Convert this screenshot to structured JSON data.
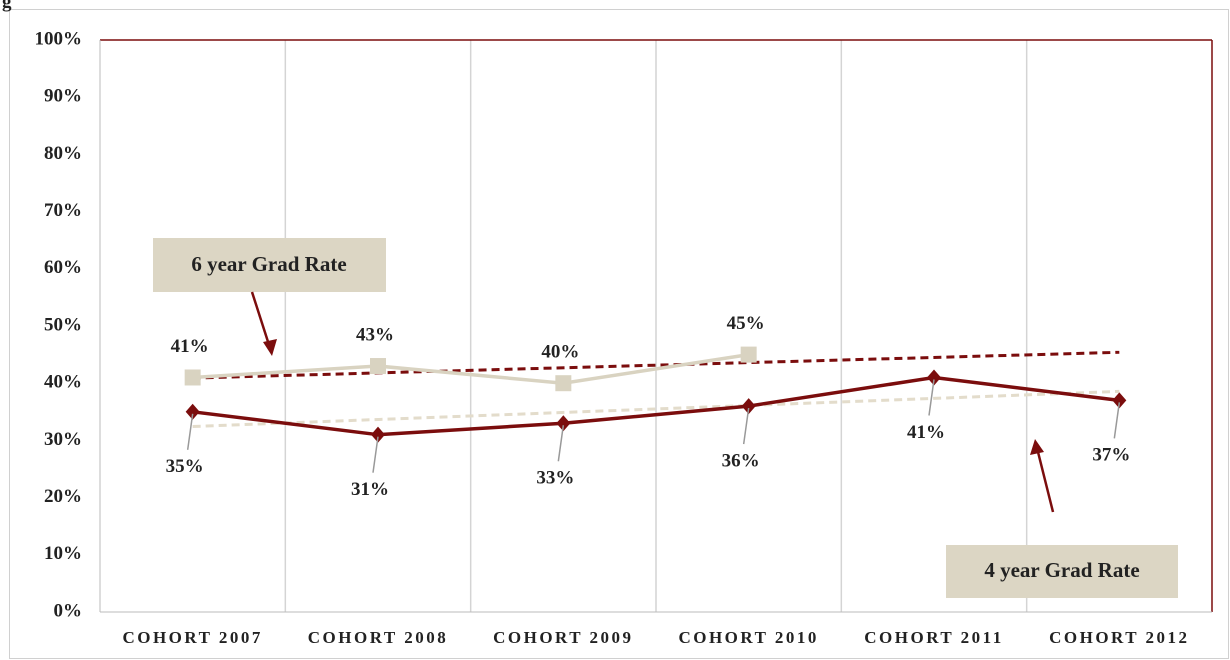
{
  "chart_data": {
    "type": "line",
    "title": "g",
    "categories": [
      "COHORT 2007",
      "COHORT 2008",
      "COHORT 2009",
      "COHORT 2010",
      "COHORT 2011",
      "COHORT 2012"
    ],
    "series": [
      {
        "name": "6 year Grad Rate",
        "color": "#d9d3c1",
        "marker": "square",
        "label_position": "above",
        "trendline": true,
        "trend_color": "#7b0d0d",
        "values": [
          41,
          43,
          40,
          45,
          null,
          null
        ],
        "value_labels": [
          "41%",
          "43%",
          "40%",
          "45%",
          null,
          null
        ]
      },
      {
        "name": "4 year Grad Rate",
        "color": "#7b0d0d",
        "marker": "diamond",
        "label_position": "below",
        "trendline": true,
        "trend_color": "#e3dccb",
        "values": [
          35,
          31,
          33,
          36,
          41,
          37
        ],
        "value_labels": [
          "35%",
          "31%",
          "33%",
          "36%",
          "41%",
          "37%"
        ]
      }
    ],
    "ylim": [
      0,
      100
    ],
    "yticks": [
      {
        "value": 0,
        "label": "0%"
      },
      {
        "value": 10,
        "label": "10%"
      },
      {
        "value": 20,
        "label": "20%"
      },
      {
        "value": 30,
        "label": "30%"
      },
      {
        "value": 40,
        "label": "40%"
      },
      {
        "value": 50,
        "label": "50%"
      },
      {
        "value": 60,
        "label": "60%"
      },
      {
        "value": 70,
        "label": "70%"
      },
      {
        "value": 80,
        "label": "80%"
      },
      {
        "value": 90,
        "label": "90%"
      },
      {
        "value": 100,
        "label": "100%"
      }
    ],
    "grid": "vertical"
  }
}
